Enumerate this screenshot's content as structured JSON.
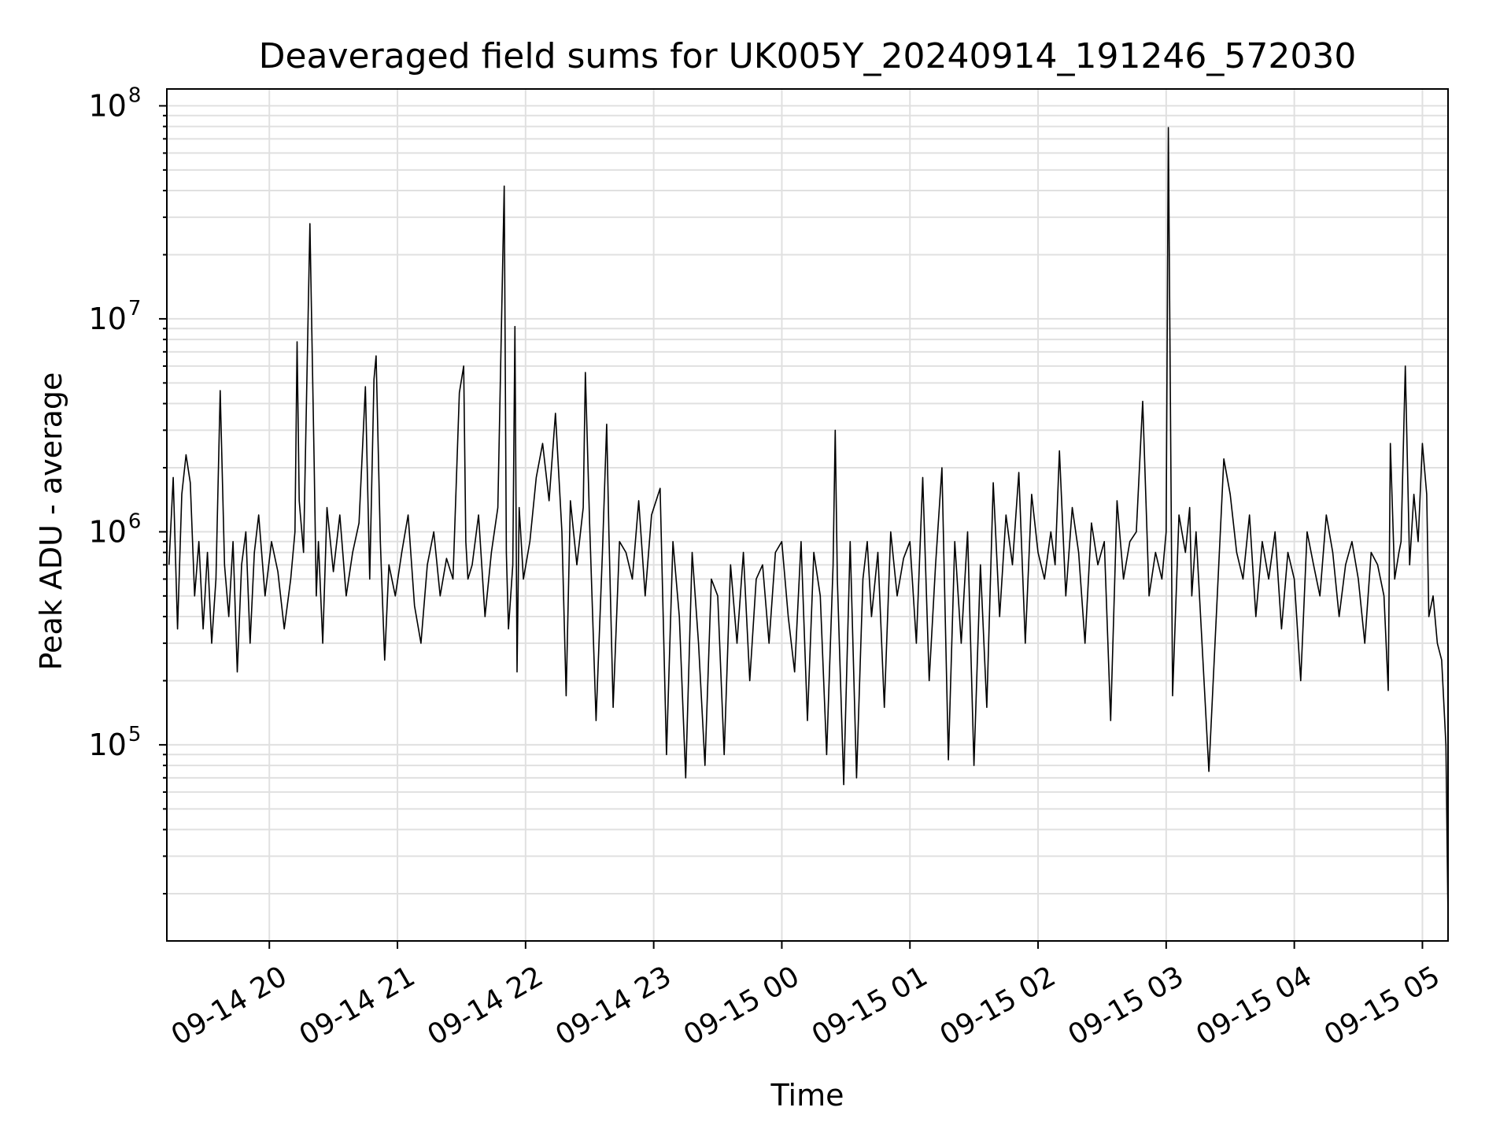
{
  "chart_data": {
    "type": "line",
    "title": "Deaveraged field sums for UK005Y_20240914_191246_572030",
    "xlabel": "Time",
    "ylabel": "Peak ADU - average",
    "yscale": "log",
    "ylim": [
      12000,
      120000000
    ],
    "xlim": [
      "2024-09-14 19:12",
      "2024-09-15 05:12"
    ],
    "grid": true,
    "x_ticks": [
      "09-14 20",
      "09-14 21",
      "09-14 22",
      "09-14 23",
      "09-15 00",
      "09-15 01",
      "09-15 02",
      "09-15 03",
      "09-15 04",
      "09-15 05"
    ],
    "y_ticks": [
      {
        "value": 100000,
        "base": "10",
        "exp": "5"
      },
      {
        "value": 1000000,
        "base": "10",
        "exp": "6"
      },
      {
        "value": 10000000,
        "base": "10",
        "exp": "7"
      },
      {
        "value": 100000000,
        "base": "10",
        "exp": "8"
      }
    ],
    "line_color": "#000000",
    "grid_color": "#e0e0e0",
    "series": [
      {
        "x": [
          "2024-09-14 19:13",
          "2024-09-14 19:15",
          "2024-09-14 19:17",
          "2024-09-14 19:19",
          "2024-09-14 19:21",
          "2024-09-14 19:23",
          "2024-09-14 19:25",
          "2024-09-14 19:27",
          "2024-09-14 19:29",
          "2024-09-14 19:31",
          "2024-09-14 19:33",
          "2024-09-14 19:35",
          "2024-09-14 19:37",
          "2024-09-14 19:39",
          "2024-09-14 19:41",
          "2024-09-14 19:43",
          "2024-09-14 19:45",
          "2024-09-14 19:47",
          "2024-09-14 19:49",
          "2024-09-14 19:51",
          "2024-09-14 19:53",
          "2024-09-14 19:55",
          "2024-09-14 19:58",
          "2024-09-14 20:01",
          "2024-09-14 20:04",
          "2024-09-14 20:07",
          "2024-09-14 20:10",
          "2024-09-14 20:12",
          "2024-09-14 20:13",
          "2024-09-14 20:14",
          "2024-09-14 20:16",
          "2024-09-14 20:19",
          "2024-09-14 20:21",
          "2024-09-14 20:22",
          "2024-09-14 20:23",
          "2024-09-14 20:25",
          "2024-09-14 20:27",
          "2024-09-14 20:30",
          "2024-09-14 20:33",
          "2024-09-14 20:36",
          "2024-09-14 20:39",
          "2024-09-14 20:42",
          "2024-09-14 20:45",
          "2024-09-14 20:47",
          "2024-09-14 20:49",
          "2024-09-14 20:50",
          "2024-09-14 20:52",
          "2024-09-14 20:54",
          "2024-09-14 20:56",
          "2024-09-14 20:59",
          "2024-09-14 21:02",
          "2024-09-14 21:05",
          "2024-09-14 21:08",
          "2024-09-14 21:11",
          "2024-09-14 21:14",
          "2024-09-14 21:17",
          "2024-09-14 21:20",
          "2024-09-14 21:23",
          "2024-09-14 21:26",
          "2024-09-14 21:29",
          "2024-09-14 21:31",
          "2024-09-14 21:32",
          "2024-09-14 21:33",
          "2024-09-14 21:35",
          "2024-09-14 21:38",
          "2024-09-14 21:41",
          "2024-09-14 21:44",
          "2024-09-14 21:47",
          "2024-09-14 21:50",
          "2024-09-14 21:51",
          "2024-09-14 21:52",
          "2024-09-14 21:54",
          "2024-09-14 21:55",
          "2024-09-14 21:56",
          "2024-09-14 21:57",
          "2024-09-14 21:59",
          "2024-09-14 22:02",
          "2024-09-14 22:05",
          "2024-09-14 22:08",
          "2024-09-14 22:11",
          "2024-09-14 22:14",
          "2024-09-14 22:17",
          "2024-09-14 22:19",
          "2024-09-14 22:21",
          "2024-09-14 22:24",
          "2024-09-14 22:27",
          "2024-09-14 22:28",
          "2024-09-14 22:30",
          "2024-09-14 22:33",
          "2024-09-14 22:36",
          "2024-09-14 22:38",
          "2024-09-14 22:39",
          "2024-09-14 22:41",
          "2024-09-14 22:44",
          "2024-09-14 22:47",
          "2024-09-14 22:50",
          "2024-09-14 22:53",
          "2024-09-14 22:56",
          "2024-09-14 22:59",
          "2024-09-14 23:03",
          "2024-09-14 23:06",
          "2024-09-14 23:09",
          "2024-09-14 23:12",
          "2024-09-14 23:15",
          "2024-09-14 23:18",
          "2024-09-14 23:21",
          "2024-09-14 23:24",
          "2024-09-14 23:27",
          "2024-09-14 23:30",
          "2024-09-14 23:33",
          "2024-09-14 23:36",
          "2024-09-14 23:39",
          "2024-09-14 23:42",
          "2024-09-14 23:45",
          "2024-09-14 23:48",
          "2024-09-14 23:51",
          "2024-09-14 23:54",
          "2024-09-14 23:57",
          "2024-09-15 00:00",
          "2024-09-15 00:03",
          "2024-09-15 00:06",
          "2024-09-15 00:09",
          "2024-09-15 00:12",
          "2024-09-15 00:15",
          "2024-09-15 00:18",
          "2024-09-15 00:21",
          "2024-09-15 00:24",
          "2024-09-15 00:25",
          "2024-09-15 00:26",
          "2024-09-15 00:29",
          "2024-09-15 00:32",
          "2024-09-15 00:35",
          "2024-09-15 00:38",
          "2024-09-15 00:40",
          "2024-09-15 00:42",
          "2024-09-15 00:45",
          "2024-09-15 00:48",
          "2024-09-15 00:51",
          "2024-09-15 00:54",
          "2024-09-15 00:57",
          "2024-09-15 01:00",
          "2024-09-15 01:03",
          "2024-09-15 01:06",
          "2024-09-15 01:09",
          "2024-09-15 01:12",
          "2024-09-15 01:15",
          "2024-09-15 01:18",
          "2024-09-15 01:21",
          "2024-09-15 01:24",
          "2024-09-15 01:27",
          "2024-09-15 01:30",
          "2024-09-15 01:33",
          "2024-09-15 01:36",
          "2024-09-15 01:39",
          "2024-09-15 01:42",
          "2024-09-15 01:45",
          "2024-09-15 01:48",
          "2024-09-15 01:51",
          "2024-09-15 01:54",
          "2024-09-15 01:57",
          "2024-09-15 02:00",
          "2024-09-15 02:03",
          "2024-09-15 02:06",
          "2024-09-15 02:08",
          "2024-09-15 02:10",
          "2024-09-15 02:13",
          "2024-09-15 02:16",
          "2024-09-15 02:19",
          "2024-09-15 02:22",
          "2024-09-15 02:25",
          "2024-09-15 02:28",
          "2024-09-15 02:31",
          "2024-09-15 02:34",
          "2024-09-15 02:37",
          "2024-09-15 02:40",
          "2024-09-15 02:43",
          "2024-09-15 02:46",
          "2024-09-15 02:49",
          "2024-09-15 02:52",
          "2024-09-15 02:55",
          "2024-09-15 02:58",
          "2024-09-15 03:00",
          "2024-09-15 03:01",
          "2024-09-15 03:03",
          "2024-09-15 03:06",
          "2024-09-15 03:09",
          "2024-09-15 03:11",
          "2024-09-15 03:12",
          "2024-09-15 03:14",
          "2024-09-15 03:20",
          "2024-09-15 03:27",
          "2024-09-15 03:30",
          "2024-09-15 03:33",
          "2024-09-15 03:36",
          "2024-09-15 03:39",
          "2024-09-15 03:42",
          "2024-09-15 03:45",
          "2024-09-15 03:48",
          "2024-09-15 03:51",
          "2024-09-15 03:54",
          "2024-09-15 03:57",
          "2024-09-15 04:00",
          "2024-09-15 04:03",
          "2024-09-15 04:06",
          "2024-09-15 04:09",
          "2024-09-15 04:12",
          "2024-09-15 04:15",
          "2024-09-15 04:18",
          "2024-09-15 04:21",
          "2024-09-15 04:24",
          "2024-09-15 04:27",
          "2024-09-15 04:30",
          "2024-09-15 04:33",
          "2024-09-15 04:36",
          "2024-09-15 04:39",
          "2024-09-15 04:42",
          "2024-09-15 04:44",
          "2024-09-15 04:45",
          "2024-09-15 04:47",
          "2024-09-15 04:49",
          "2024-09-15 04:50",
          "2024-09-15 04:52",
          "2024-09-15 04:54",
          "2024-09-15 04:56",
          "2024-09-15 04:58",
          "2024-09-15 05:00",
          "2024-09-15 05:02",
          "2024-09-15 05:03",
          "2024-09-15 05:05",
          "2024-09-15 05:07",
          "2024-09-15 05:09",
          "2024-09-15 05:11",
          "2024-09-15 05:12"
        ],
        "y": [
          700000,
          1800000,
          350000,
          1500000,
          2300000,
          1700000,
          500000,
          900000,
          350000,
          800000,
          300000,
          600000,
          4600000,
          700000,
          400000,
          900000,
          220000,
          700000,
          1000000,
          300000,
          800000,
          1200000,
          500000,
          900000,
          650000,
          350000,
          600000,
          1000000,
          7800000,
          1400000,
          800000,
          28000000,
          2100000,
          500000,
          900000,
          300000,
          1300000,
          650000,
          1200000,
          500000,
          800000,
          1100000,
          4800000,
          600000,
          5200000,
          6700000,
          900000,
          250000,
          700000,
          500000,
          800000,
          1200000,
          450000,
          300000,
          700000,
          1000000,
          500000,
          750000,
          600000,
          4500000,
          6000000,
          900000,
          600000,
          700000,
          1200000,
          400000,
          800000,
          1300000,
          42000000,
          800000,
          350000,
          700000,
          9200000,
          220000,
          1300000,
          600000,
          900000,
          1800000,
          2600000,
          1400000,
          3600000,
          1000000,
          170000,
          1400000,
          700000,
          1300000,
          5600000,
          1100000,
          130000,
          800000,
          3200000,
          1000000,
          150000,
          900000,
          800000,
          600000,
          1400000,
          500000,
          1200000,
          1600000,
          90000,
          900000,
          400000,
          70000,
          800000,
          300000,
          80000,
          600000,
          500000,
          90000,
          700000,
          300000,
          800000,
          200000,
          600000,
          700000,
          300000,
          800000,
          900000,
          400000,
          220000,
          900000,
          130000,
          800000,
          500000,
          90000,
          700000,
          3000000,
          600000,
          65000,
          900000,
          70000,
          600000,
          900000,
          400000,
          800000,
          150000,
          1000000,
          500000,
          750000,
          900000,
          300000,
          1800000,
          200000,
          700000,
          2000000,
          85000,
          900000,
          300000,
          1000000,
          80000,
          700000,
          150000,
          1700000,
          400000,
          1200000,
          700000,
          1900000,
          300000,
          1500000,
          800000,
          600000,
          1000000,
          700000,
          2400000,
          500000,
          1300000,
          800000,
          300000,
          1100000,
          700000,
          900000,
          130000,
          1400000,
          600000,
          900000,
          1000000,
          4100000,
          500000,
          800000,
          600000,
          1000000,
          79000000,
          170000,
          1200000,
          800000,
          1300000,
          500000,
          1000000,
          75000,
          2200000,
          1500000,
          800000,
          600000,
          1200000,
          400000,
          900000,
          600000,
          1000000,
          350000,
          800000,
          600000,
          200000,
          1000000,
          700000,
          500000,
          1200000,
          800000,
          400000,
          700000,
          900000,
          600000,
          300000,
          800000,
          700000,
          500000,
          180000,
          2600000,
          600000,
          800000,
          900000,
          6000000,
          700000,
          1500000,
          900000,
          2600000,
          1500000,
          400000,
          500000,
          300000,
          250000,
          100000,
          15000
        ]
      }
    ]
  }
}
